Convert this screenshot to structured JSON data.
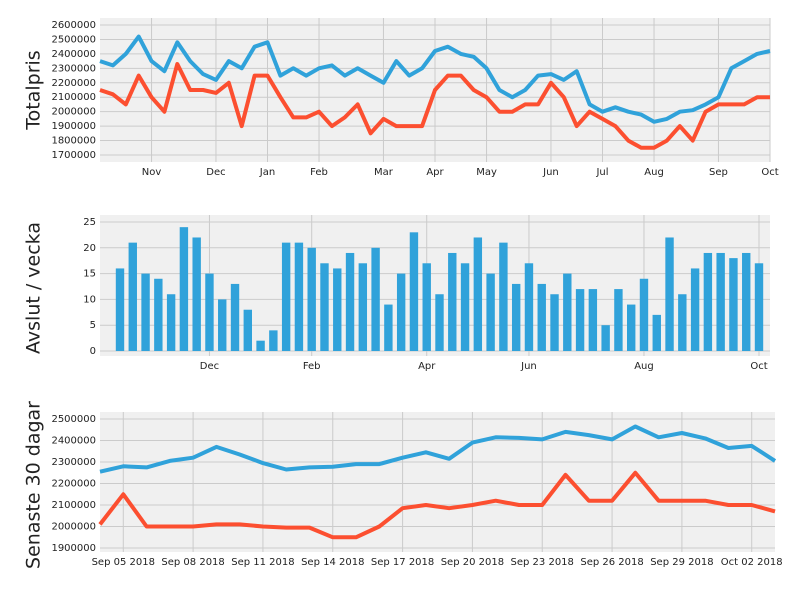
{
  "chart_data": [
    {
      "type": "line",
      "y_label": "Totalpris",
      "categories": [
        null,
        null,
        null,
        null,
        "Nov",
        null,
        null,
        null,
        null,
        "Dec",
        null,
        null,
        null,
        "Jan",
        null,
        null,
        null,
        "Feb",
        null,
        null,
        null,
        null,
        "Mar",
        null,
        null,
        null,
        "Apr",
        null,
        null,
        null,
        "May",
        null,
        null,
        null,
        null,
        "Jun",
        null,
        null,
        null,
        "Jul",
        null,
        null,
        null,
        "Aug",
        null,
        null,
        null,
        null,
        "Sep",
        null,
        null,
        null,
        "Oct"
      ],
      "series": [
        {
          "color": "#30a2da",
          "values": [
            2350000,
            2320000,
            2400000,
            2520000,
            2350000,
            2280000,
            2480000,
            2350000,
            2260000,
            2220000,
            2350000,
            2300000,
            2450000,
            2480000,
            2250000,
            2300000,
            2250000,
            2300000,
            2320000,
            2250000,
            2300000,
            2250000,
            2200000,
            2350000,
            2250000,
            2300000,
            2420000,
            2450000,
            2400000,
            2380000,
            2300000,
            2150000,
            2100000,
            2150000,
            2250000,
            2260000,
            2220000,
            2280000,
            2050000,
            2000000,
            2030000,
            2000000,
            1980000,
            1930000,
            1950000,
            2000000,
            2010000,
            2050000,
            2100000,
            2300000,
            2350000,
            2400000,
            2420000
          ]
        },
        {
          "color": "#fc4f30",
          "values": [
            2150000,
            2120000,
            2050000,
            2250000,
            2100000,
            2000000,
            2330000,
            2150000,
            2150000,
            2130000,
            2200000,
            1900000,
            2250000,
            2250000,
            2100000,
            1960000,
            1960000,
            2000000,
            1900000,
            1960000,
            2050000,
            1850000,
            1950000,
            1900000,
            1900000,
            1900000,
            2150000,
            2250000,
            2250000,
            2150000,
            2100000,
            2000000,
            2000000,
            2050000,
            2050000,
            2200000,
            2100000,
            1900000,
            2000000,
            1950000,
            1900000,
            1800000,
            1750000,
            1750000,
            1800000,
            1900000,
            1800000,
            2000000,
            2050000,
            2050000,
            2050000,
            2100000,
            2100000
          ]
        }
      ],
      "ylim": [
        1700000,
        2600000
      ],
      "yticks": [
        1700000,
        1800000,
        1900000,
        2000000,
        2100000,
        2200000,
        2300000,
        2400000,
        2500000,
        2600000
      ],
      "grid": true
    },
    {
      "type": "bar",
      "y_label": "Avslut / vecka",
      "categories": [
        null,
        null,
        null,
        null,
        null,
        null,
        null,
        "Dec",
        null,
        null,
        null,
        null,
        null,
        null,
        null,
        "Feb",
        null,
        null,
        null,
        null,
        null,
        null,
        null,
        null,
        "Apr",
        null,
        null,
        null,
        null,
        null,
        null,
        null,
        "Jun",
        null,
        null,
        null,
        null,
        null,
        null,
        null,
        null,
        "Aug",
        null,
        null,
        null,
        null,
        null,
        null,
        null,
        null,
        "Oct"
      ],
      "values": [
        16,
        21,
        15,
        14,
        11,
        24,
        22,
        15,
        10,
        13,
        8,
        2,
        4,
        21,
        21,
        20,
        17,
        16,
        19,
        17,
        20,
        9,
        15,
        23,
        17,
        11,
        19,
        17,
        22,
        15,
        21,
        13,
        17,
        13,
        11,
        15,
        12,
        12,
        5,
        12,
        9,
        14,
        7,
        22,
        11,
        16,
        19,
        19,
        18,
        19,
        17
      ],
      "color": "#30a2da",
      "ylim": [
        0,
        25
      ],
      "yticks": [
        0,
        5,
        10,
        15,
        20,
        25
      ],
      "grid": true
    },
    {
      "type": "line",
      "y_label": "Senaste 30 dagar",
      "categories": [
        null,
        "Sep 05 2018",
        null,
        null,
        "Sep 08 2018",
        null,
        null,
        "Sep 11 2018",
        null,
        null,
        "Sep 14 2018",
        null,
        null,
        "Sep 17 2018",
        null,
        null,
        "Sep 20 2018",
        null,
        null,
        "Sep 23 2018",
        null,
        null,
        "Sep 26 2018",
        null,
        null,
        "Sep 29 2018",
        null,
        null,
        "Oct 02 2018",
        null
      ],
      "series": [
        {
          "color": "#30a2da",
          "values": [
            2255000,
            2280000,
            2275000,
            2305000,
            2320000,
            2370000,
            2335000,
            2295000,
            2265000,
            2275000,
            2278000,
            2290000,
            2290000,
            2320000,
            2345000,
            2315000,
            2390000,
            2415000,
            2412000,
            2405000,
            2440000,
            2425000,
            2405000,
            2465000,
            2415000,
            2435000,
            2410000,
            2365000,
            2375000,
            2305000
          ]
        },
        {
          "color": "#fc4f30",
          "values": [
            2010000,
            2150000,
            2000000,
            2000000,
            2000000,
            2010000,
            2010000,
            2000000,
            1995000,
            1995000,
            1950000,
            1950000,
            2000000,
            2085000,
            2100000,
            2085000,
            2100000,
            2120000,
            2100000,
            2100000,
            2240000,
            2120000,
            2120000,
            2250000,
            2120000,
            2120000,
            2120000,
            2100000,
            2100000,
            2070000
          ]
        }
      ],
      "ylim": [
        1900000,
        2500000
      ],
      "yticks": [
        1900000,
        2000000,
        2100000,
        2200000,
        2300000,
        2400000,
        2500000
      ],
      "grid": true
    }
  ]
}
